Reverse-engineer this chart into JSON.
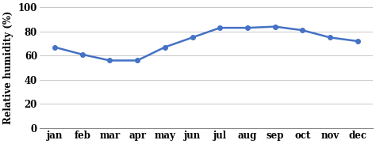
{
  "months": [
    "jan",
    "feb",
    "mar",
    "apr",
    "may",
    "jun",
    "jul",
    "aug",
    "sep",
    "oct",
    "nov",
    "dec"
  ],
  "values": [
    67,
    61,
    56,
    56,
    67,
    75,
    83,
    83,
    84,
    81,
    75,
    72
  ],
  "line_color": "#4472C4",
  "marker": "o",
  "marker_size": 4,
  "linewidth": 1.8,
  "ylabel": "Relative humidity (%)",
  "ylim": [
    0,
    100
  ],
  "yticks": [
    0,
    20,
    40,
    60,
    80,
    100
  ],
  "background_color": "#ffffff",
  "grid_color": "#c8c8c8",
  "ylabel_fontsize": 8.5,
  "tick_fontsize": 8.5,
  "font_weight": "bold",
  "font_family": "serif"
}
